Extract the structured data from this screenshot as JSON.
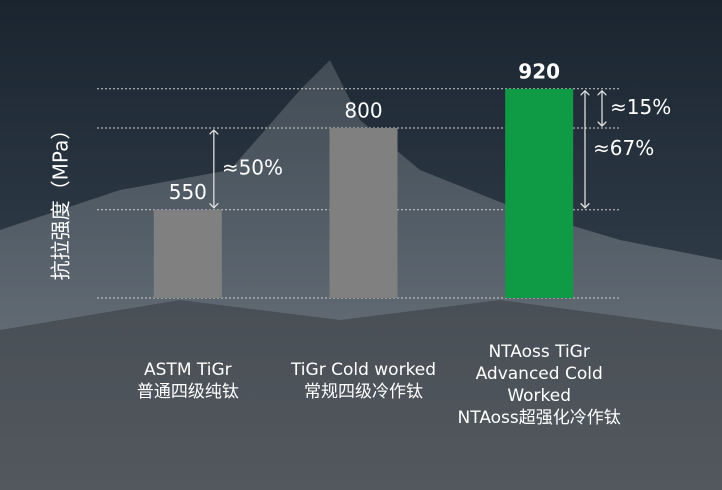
{
  "chart_data": {
    "type": "bar",
    "y_label": "抗拉强度（MPa）",
    "categories": [
      [
        "ASTM TiGr",
        "普通四级纯钛"
      ],
      [
        "TiGr Cold worked",
        "常规四级冷作钛"
      ],
      [
        "NTAoss TiGr",
        "Advanced Cold",
        "Worked",
        "NTAoss超强化冷作钛"
      ]
    ],
    "values": [
      550,
      800,
      920
    ],
    "colors": [
      "#808080",
      "#808080",
      "#0f9a46"
    ],
    "annotations": [
      "≈50%",
      "≈15%",
      "≈67%"
    ],
    "ylim": [
      280,
      950
    ]
  }
}
